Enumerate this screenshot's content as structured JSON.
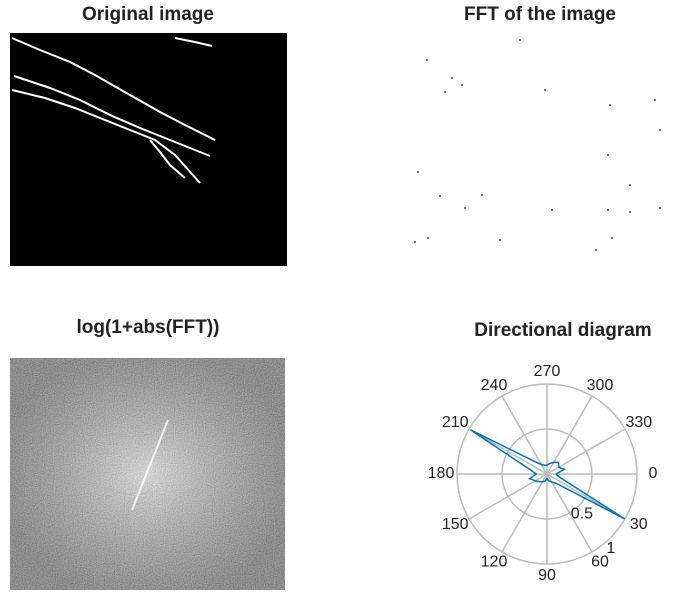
{
  "chart_data": [
    {
      "type": "image",
      "title": "Original image"
    },
    {
      "type": "image",
      "title": "FFT of the image"
    },
    {
      "type": "image",
      "title": "log(1+abs(FFT))"
    },
    {
      "type": "polar",
      "title": "Directional diagram",
      "x": [
        0,
        15,
        30,
        45,
        60,
        75,
        90,
        105,
        120,
        135,
        150,
        165,
        180,
        195,
        210,
        225,
        240,
        255,
        270,
        285,
        300,
        315,
        330,
        345,
        360
      ],
      "values": [
        0.1,
        0.15,
        1.0,
        0.15,
        0.1,
        0.08,
        0.05,
        0.08,
        0.1,
        0.12,
        0.15,
        0.2,
        0.12,
        0.2,
        0.98,
        0.2,
        0.12,
        0.1,
        0.1,
        0.12,
        0.15,
        0.18,
        0.15,
        0.2,
        0.1
      ],
      "color": "#0072bd",
      "xticks": [
        0,
        30,
        60,
        90,
        120,
        150,
        180,
        210,
        240,
        270,
        300,
        330
      ],
      "ylim": [
        0,
        1
      ],
      "yticks": [
        0.5,
        1
      ]
    }
  ]
}
